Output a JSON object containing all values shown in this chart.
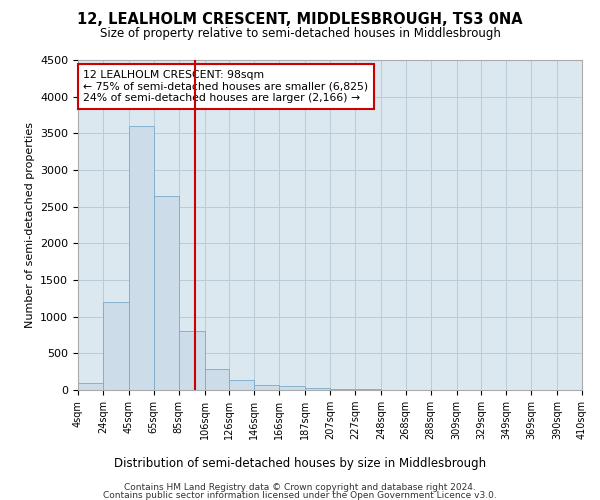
{
  "title": "12, LEALHOLM CRESCENT, MIDDLESBROUGH, TS3 0NA",
  "subtitle": "Size of property relative to semi-detached houses in Middlesbrough",
  "xlabel": "Distribution of semi-detached houses by size in Middlesbrough",
  "ylabel": "Number of semi-detached properties",
  "bin_edges": [
    4,
    24,
    45,
    65,
    85,
    106,
    126,
    146,
    166,
    187,
    207,
    227,
    248,
    268,
    288,
    309,
    329,
    349,
    369,
    390,
    410
  ],
  "bar_heights": [
    100,
    1200,
    3600,
    2650,
    800,
    290,
    130,
    75,
    55,
    30,
    15,
    10,
    5,
    2,
    1,
    0,
    0,
    0,
    0,
    0
  ],
  "bar_color": "#ccdce8",
  "bar_edge_color": "#7aaac8",
  "vline_x": 98,
  "vline_color": "#cc0000",
  "annotation_line1": "12 LEALHOLM CRESCENT: 98sqm",
  "annotation_line2": "← 75% of semi-detached houses are smaller (6,825)",
  "annotation_line3": "24% of semi-detached houses are larger (2,166) →",
  "annotation_box_color": "#cc0000",
  "ylim": [
    0,
    4500
  ],
  "yticks": [
    0,
    500,
    1000,
    1500,
    2000,
    2500,
    3000,
    3500,
    4000,
    4500
  ],
  "tick_labels": [
    "4sqm",
    "24sqm",
    "45sqm",
    "65sqm",
    "85sqm",
    "106sqm",
    "126sqm",
    "146sqm",
    "166sqm",
    "187sqm",
    "207sqm",
    "227sqm",
    "248sqm",
    "268sqm",
    "288sqm",
    "309sqm",
    "329sqm",
    "349sqm",
    "369sqm",
    "390sqm",
    "410sqm"
  ],
  "footer1": "Contains HM Land Registry data © Crown copyright and database right 2024.",
  "footer2": "Contains public sector information licensed under the Open Government Licence v3.0.",
  "background_color": "#ffffff",
  "plot_bg_color": "#dce8f0",
  "grid_color": "#b8ccd8"
}
